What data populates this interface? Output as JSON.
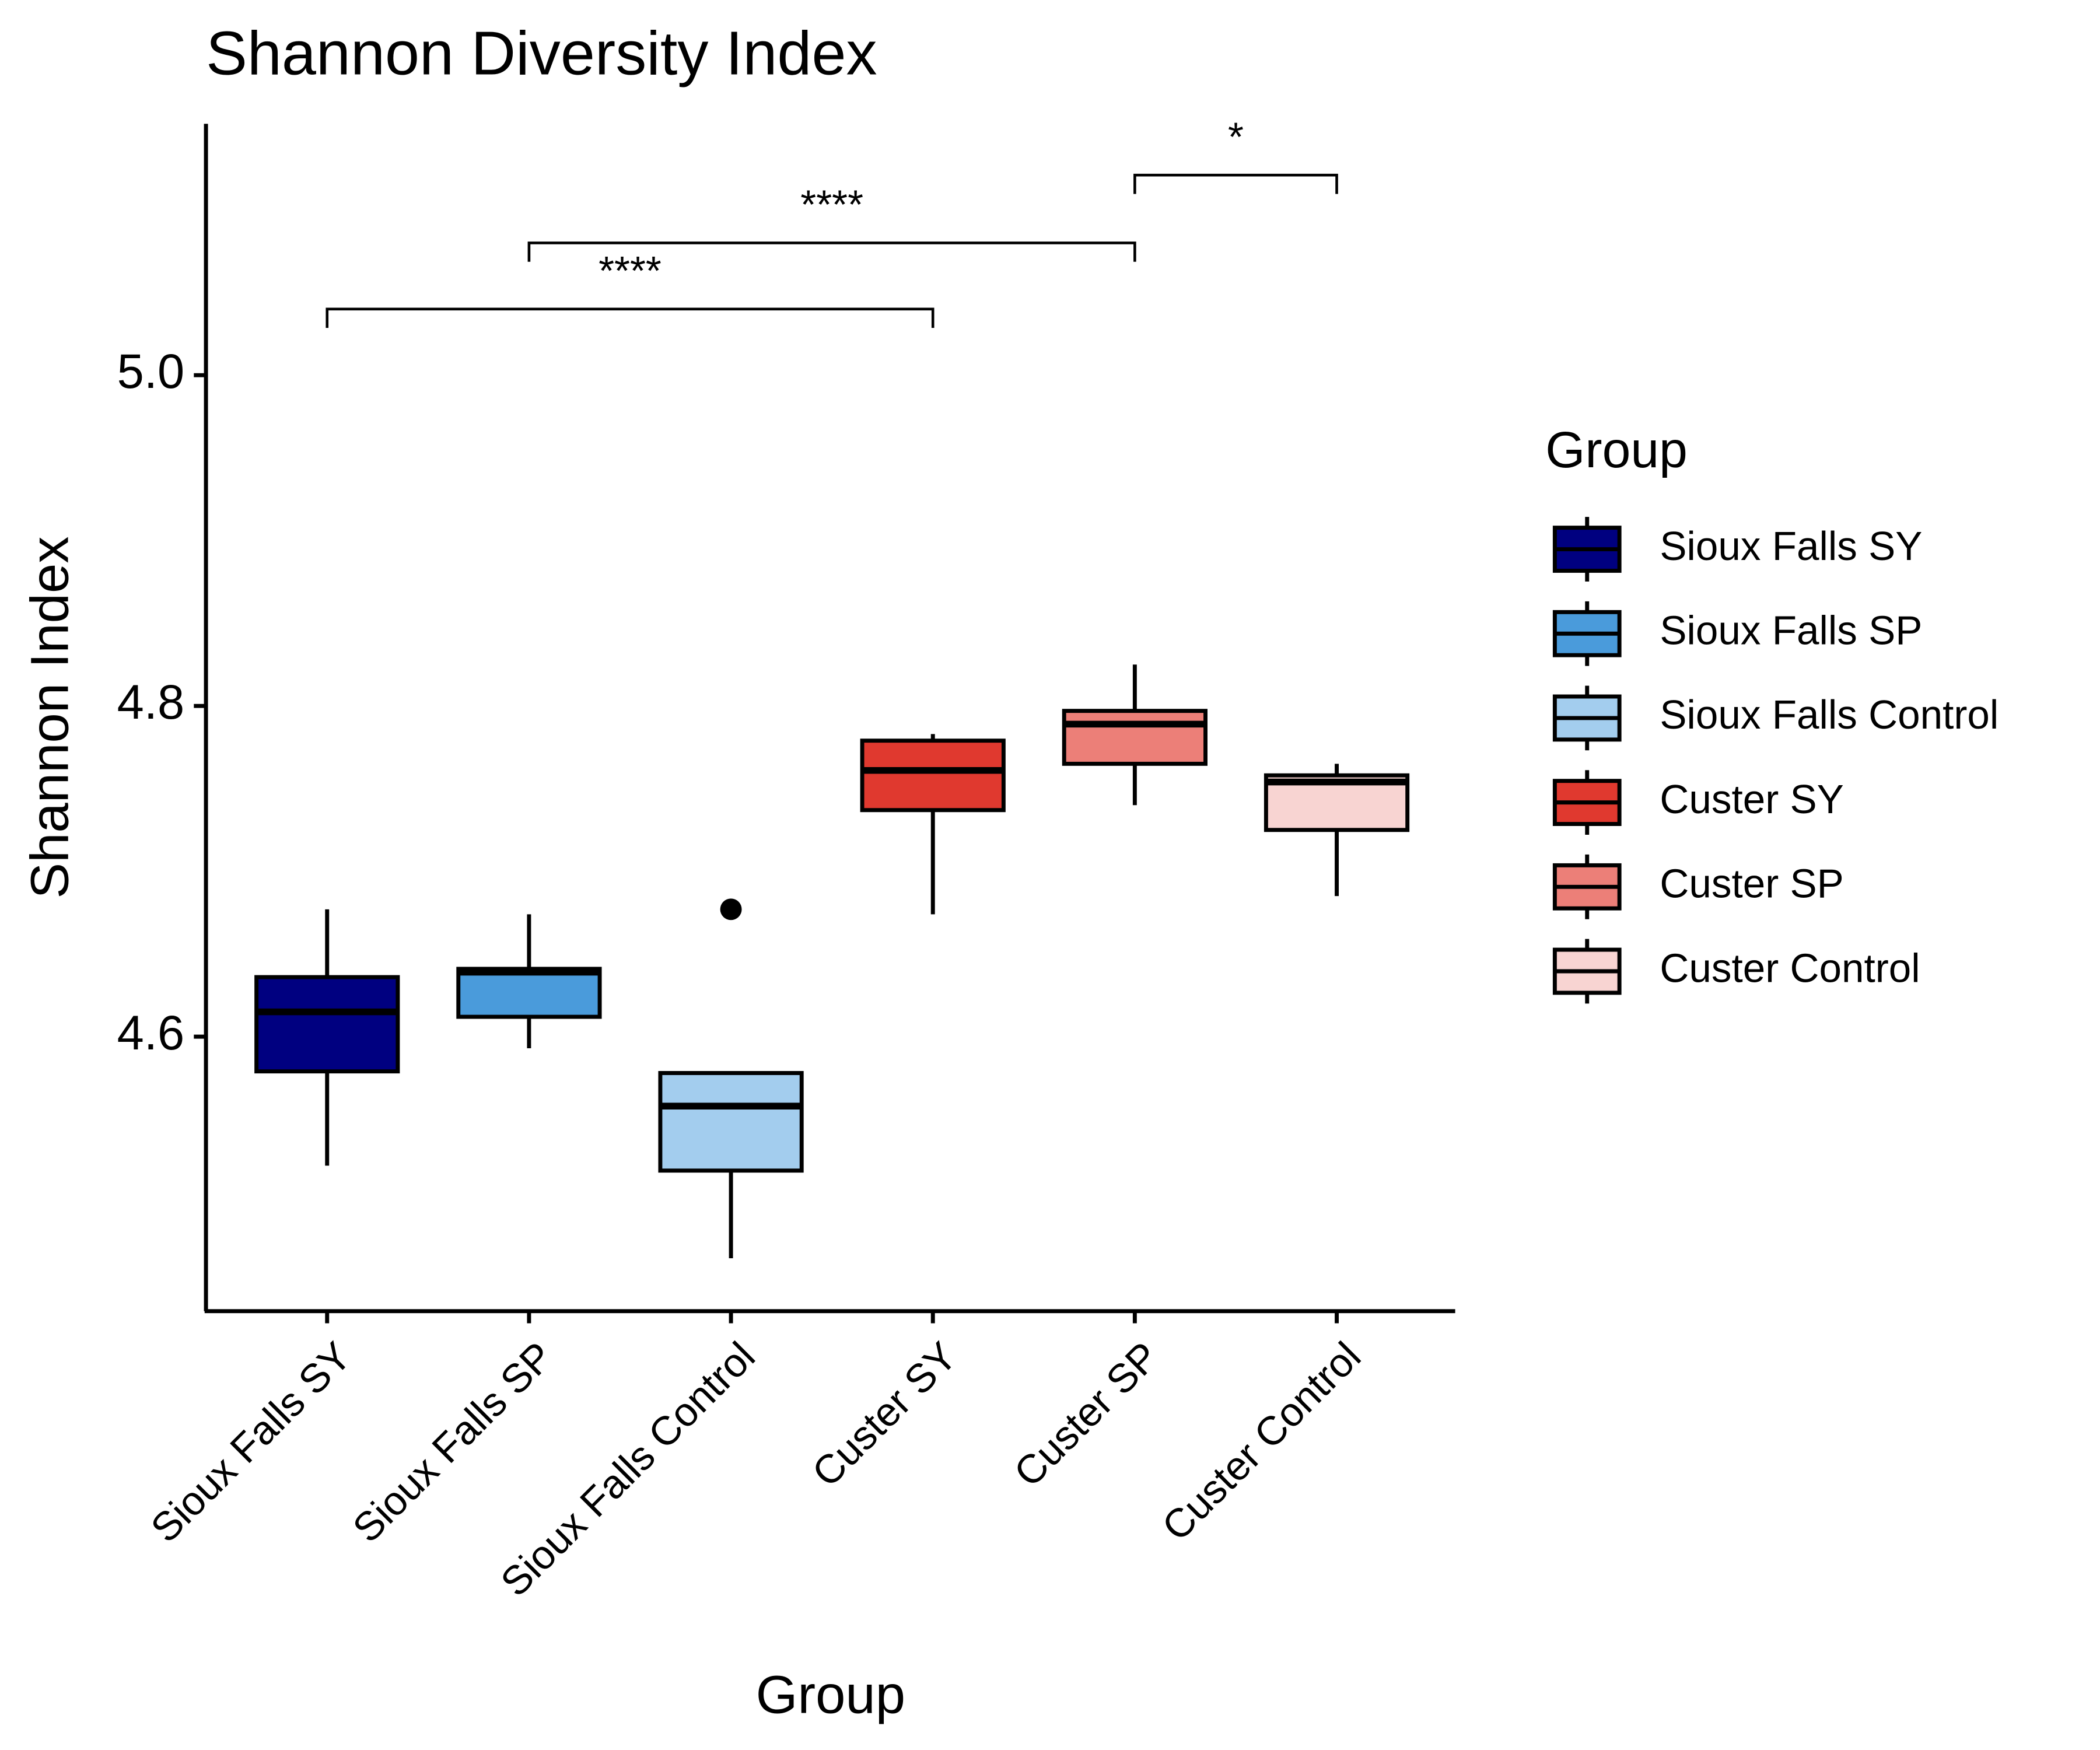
{
  "chart_data": {
    "type": "box",
    "title": "Shannon Diversity Index",
    "x_label": "Group",
    "y_label": "Shannon Index",
    "categories": [
      "Sioux Falls SY",
      "Sioux Falls SP",
      "Sioux Falls Control",
      "Custer SY",
      "Custer SP",
      "Custer Control"
    ],
    "colors": [
      "#000080",
      "#4a9bdb",
      "#a3cdee",
      "#e0392f",
      "#ec7f78",
      "#f8d4d2"
    ],
    "boxes": [
      {
        "low": 4.522,
        "q1": 4.579,
        "median": 4.615,
        "q3": 4.636,
        "high": 4.677
      },
      {
        "low": 4.593,
        "q1": 4.612,
        "median": 4.639,
        "q3": 4.641,
        "high": 4.674
      },
      {
        "low": 4.466,
        "q1": 4.519,
        "median": 4.558,
        "q3": 4.578,
        "high": 4.578,
        "outliers": [
          4.677
        ]
      },
      {
        "low": 4.674,
        "q1": 4.737,
        "median": 4.761,
        "q3": 4.779,
        "high": 4.783
      },
      {
        "low": 4.74,
        "q1": 4.765,
        "median": 4.789,
        "q3": 4.797,
        "high": 4.825
      },
      {
        "low": 4.685,
        "q1": 4.725,
        "median": 4.754,
        "q3": 4.758,
        "high": 4.765
      }
    ],
    "ylim": [
      4.434,
      5.152
    ],
    "yticks": [
      4.6,
      4.8,
      {
        "value": 5,
        "label": "5.0"
      }
    ],
    "legend_title": "Group",
    "legend": "right",
    "comparisons": [
      {
        "from": 0,
        "to": 3,
        "y": 5.04,
        "label": "****"
      },
      {
        "from": 1,
        "to": 4,
        "y": 5.08,
        "label": "****"
      },
      {
        "from": 4,
        "to": 5,
        "y": 5.121,
        "label": "*"
      }
    ]
  }
}
